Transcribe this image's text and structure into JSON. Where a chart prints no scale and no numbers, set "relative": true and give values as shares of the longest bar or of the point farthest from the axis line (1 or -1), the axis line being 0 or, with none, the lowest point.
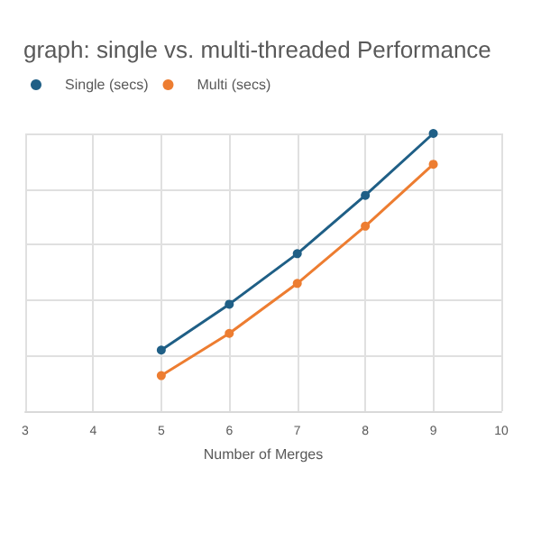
{
  "chart_data": {
    "type": "line",
    "title": "graph: single vs. multi-threaded Performance",
    "xlabel": "Number of Merges",
    "x": [
      5,
      6,
      7,
      8,
      9
    ],
    "series": [
      {
        "name": "Single (secs)",
        "color": "#1f5f86",
        "values": [
          0.22,
          0.385,
          0.567,
          0.777,
          1
        ]
      },
      {
        "name": "Multi (secs)",
        "color": "#ed7d31",
        "values": [
          0.128,
          0.28,
          0.46,
          0.666,
          0.889
        ]
      }
    ],
    "relative": true,
    "xlim": [
      3,
      10
    ],
    "xticks": [
      3,
      4,
      5,
      6,
      7,
      8,
      9,
      10
    ],
    "grid": true,
    "legend": "top left",
    "marker": "circle",
    "line_style": "solid"
  }
}
